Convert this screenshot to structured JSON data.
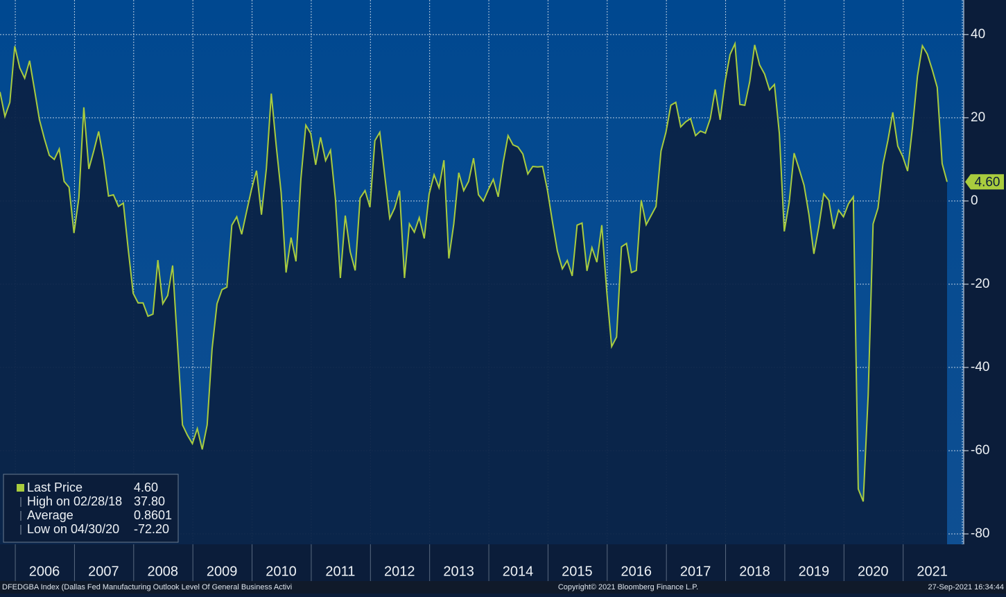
{
  "chart_data": {
    "type": "line",
    "categories": [
      null,
      null,
      null,
      null,
      null,
      null,
      null,
      null,
      null,
      null,
      "2006",
      null,
      null,
      null,
      null,
      null,
      null,
      null,
      null,
      null,
      null,
      null,
      "2007",
      null,
      null,
      null,
      null,
      null,
      null,
      null,
      null,
      null,
      null,
      null,
      "2008",
      null,
      null,
      null,
      null,
      null,
      null,
      null,
      null,
      null,
      null,
      null,
      "2009",
      null,
      null,
      null,
      null,
      null,
      null,
      null,
      null,
      null,
      null,
      null,
      "2010",
      null,
      null,
      null,
      null,
      null,
      null,
      null,
      null,
      null,
      null,
      null,
      "2011",
      null,
      null,
      null,
      null,
      null,
      null,
      null,
      null,
      null,
      null,
      null,
      "2012",
      null,
      null,
      null,
      null,
      null,
      null,
      null,
      null,
      null,
      null,
      null,
      "2013",
      null,
      null,
      null,
      null,
      null,
      null,
      null,
      null,
      null,
      null,
      null,
      "2014",
      null,
      null,
      null,
      null,
      null,
      null,
      null,
      null,
      null,
      null,
      null,
      "2015",
      null,
      null,
      null,
      null,
      null,
      null,
      null,
      null,
      null,
      null,
      null,
      "2016",
      null,
      null,
      null,
      null,
      null,
      null,
      null,
      null,
      null,
      null,
      null,
      "2017",
      null,
      null,
      null,
      null,
      null,
      null,
      null,
      null,
      null,
      null,
      null,
      "2018",
      null,
      null,
      null,
      null,
      null,
      null,
      null,
      null,
      null,
      null,
      null,
      "2019",
      null,
      null,
      null,
      null,
      null,
      null,
      null,
      null,
      null,
      null,
      null,
      "2020",
      null,
      null,
      null,
      null,
      null,
      null,
      null,
      null,
      null,
      null,
      null,
      "2021",
      null,
      null
    ],
    "series": [
      {
        "name": "Last Price",
        "color": "#a9cc3e",
        "values": [
          26.2,
          20.3,
          23.7,
          37.2,
          32,
          29.5,
          33.7,
          26.7,
          19.5,
          15,
          11,
          10,
          12.5,
          4.7,
          3.3,
          -7.7,
          0.8,
          22.5,
          7.7,
          12,
          16.7,
          10,
          1.2,
          1.5,
          -1.3,
          -0.5,
          -11.7,
          -22.2,
          -24.5,
          -24.5,
          -27.7,
          -27.2,
          -14.2,
          -24.7,
          -22.7,
          -15.5,
          -34.7,
          -53.8,
          -56.3,
          -58.3,
          -54.7,
          -59.7,
          -53.8,
          -35.5,
          -24.7,
          -21.3,
          -20.7,
          -5.8,
          -3.8,
          -8,
          -2.5,
          2.8,
          7.3,
          -3.3,
          7.8,
          25.8,
          13.3,
          2,
          -17.2,
          -8.8,
          -14.5,
          5.3,
          18.2,
          16.2,
          8.7,
          15.3,
          9.7,
          12.2,
          0.5,
          -18.5,
          -3.5,
          -12.2,
          -16.7,
          0.7,
          2.5,
          -1.5,
          14.5,
          16.5,
          6.2,
          -4.2,
          -1.7,
          2.5,
          -18.5,
          -5.5,
          -7.5,
          -4,
          -9,
          1.7,
          6.3,
          3.2,
          9.8,
          -13.8,
          -5.5,
          6.8,
          2.5,
          4.7,
          10.3,
          1.5,
          0,
          2.7,
          5.2,
          1,
          9.2,
          15.7,
          13.5,
          13,
          11.3,
          6.5,
          8.3,
          8.2,
          8.3,
          2.5,
          -5,
          -12,
          -16.3,
          -14.3,
          -18,
          -5.8,
          -5.3,
          -16.8,
          -11.2,
          -14.7,
          -5.8,
          -21.7,
          -35,
          -32.7,
          -11,
          -10.2,
          -17.2,
          -16.7,
          0.2,
          -5.7,
          -3.5,
          -1.3,
          12,
          16.5,
          23,
          23.7,
          17.8,
          19,
          19.8,
          15.7,
          16.8,
          16.3,
          19.8,
          26.8,
          19.5,
          28.7,
          35.2,
          37.8,
          23.2,
          23,
          28.7,
          37.5,
          32.7,
          30.5,
          26.7,
          28,
          16.2,
          -7.3,
          -0.3,
          11.5,
          7.7,
          3.8,
          -3.3,
          -12.7,
          -6.2,
          1.7,
          0.2,
          -6.7,
          -2.2,
          -3.8,
          -0.7,
          1,
          -69.2,
          -72.2,
          -46.7,
          -5.5,
          -1.7,
          8.8,
          14.5,
          21.3,
          13.2,
          10.7,
          7.2,
          17.8,
          30,
          37.3,
          35.3,
          31.5,
          27.3,
          9,
          4.6
        ]
      }
    ],
    "ylim": [
      -82.5,
      48.3
    ],
    "yticks": [
      -80,
      -60,
      -40,
      -20,
      0,
      20,
      40
    ],
    "grid": true,
    "stats": [
      {
        "label": "Last Price",
        "value": 4.6,
        "value_label": "4.60"
      },
      {
        "label": "High on 02/28/18",
        "value": 37.8,
        "value_label": "37.80"
      },
      {
        "label": "Average",
        "value": 0.8601
      },
      {
        "label": "Low on 04/30/20",
        "value": -72.2,
        "value_label": "-72.20"
      }
    ],
    "footer": {
      "ticker": "DFEDGBA Index (Dallas Fed Manufacturing Outlook Level Of General Business Activi",
      "copyright": "Copyright© 2021 Bloomberg Finance L.P.",
      "timestamp": "27-Sep-2021 16:34:44"
    }
  }
}
